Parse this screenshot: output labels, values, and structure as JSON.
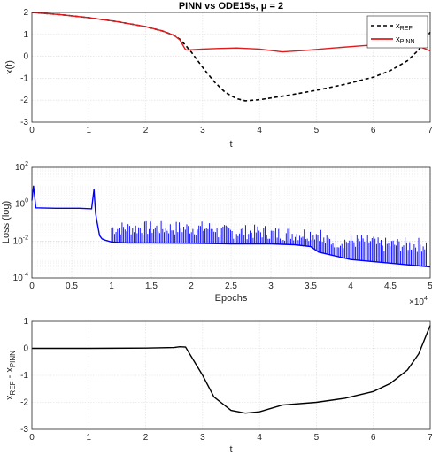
{
  "chart_data": [
    {
      "type": "line",
      "title": "PINN vs ODE15s, μ = 2",
      "xlabel": "t",
      "ylabel": "x(t)",
      "xlim": [
        0,
        7
      ],
      "ylim": [
        -3,
        2
      ],
      "xticks": [
        "0",
        "1",
        "2",
        "3",
        "4",
        "5",
        "6",
        "7"
      ],
      "yticks": [
        "-3",
        "-2",
        "-1",
        "0",
        "1",
        "2"
      ],
      "grid": true,
      "legend_position": "top-right",
      "series": [
        {
          "name": "xREF",
          "color": "#000000",
          "style": "dashed",
          "x": [
            0,
            0.5,
            1,
            1.5,
            2,
            2.3,
            2.5,
            2.6,
            2.7,
            2.8,
            2.9,
            3.0,
            3.2,
            3.4,
            3.6,
            3.75,
            4.0,
            4.5,
            5.0,
            5.5,
            6.0,
            6.3,
            6.6,
            6.8,
            7.0
          ],
          "y": [
            2.0,
            1.9,
            1.76,
            1.58,
            1.35,
            1.15,
            0.95,
            0.78,
            0.5,
            0.2,
            -0.15,
            -0.5,
            -1.15,
            -1.65,
            -1.93,
            -2.03,
            -1.98,
            -1.78,
            -1.55,
            -1.28,
            -0.95,
            -0.65,
            -0.2,
            0.3,
            1.1
          ]
        },
        {
          "name": "xPINN",
          "color": "#e31a1c",
          "style": "solid",
          "x": [
            0,
            0.5,
            1,
            1.5,
            2,
            2.3,
            2.5,
            2.6,
            2.7,
            2.8,
            3.0,
            3.3,
            3.6,
            4.0,
            4.4,
            4.8,
            5.3,
            5.8,
            6.2,
            6.6,
            6.8,
            7.0
          ],
          "y": [
            2.0,
            1.9,
            1.76,
            1.58,
            1.35,
            1.15,
            0.95,
            0.75,
            0.3,
            0.3,
            0.33,
            0.36,
            0.38,
            0.33,
            0.2,
            0.27,
            0.38,
            0.48,
            0.55,
            0.55,
            0.45,
            0.25
          ]
        }
      ]
    },
    {
      "type": "line",
      "title": "",
      "xlabel": "Epochs",
      "ylabel": "Loss (log)",
      "xlim": [
        0,
        5
      ],
      "ylim": [
        -4,
        2
      ],
      "log_scale_y": true,
      "x_multiplier": "×10^4",
      "xticks": [
        "0",
        "0.5",
        "1",
        "1.5",
        "2",
        "2.5",
        "3",
        "3.5",
        "4",
        "4.5",
        "5"
      ],
      "yticks": [
        "10^-4",
        "10^-2",
        "10^0",
        "10^2"
      ],
      "grid": true,
      "series": [
        {
          "name": "",
          "color": "#0000ff",
          "style": "solid",
          "x": [
            0,
            0.02,
            0.05,
            0.3,
            0.6,
            0.75,
            0.78,
            0.8,
            0.82,
            0.85,
            0.88,
            0.92,
            0.96,
            1.0,
            1.2,
            1.5,
            2.0,
            2.5,
            3.0,
            3.3,
            3.5,
            3.6,
            4.0,
            4.5,
            5.0
          ],
          "log10_y": [
            0.2,
            1.0,
            -0.2,
            -0.22,
            -0.22,
            -0.25,
            0.8,
            -0.5,
            -1.0,
            -1.7,
            -1.88,
            -1.95,
            -2.0,
            -2.05,
            -2.1,
            -2.1,
            -2.12,
            -2.15,
            -2.15,
            -2.2,
            -2.3,
            -2.6,
            -3.0,
            -3.2,
            -3.4
          ],
          "spike_range": [
            1.0,
            4.95
          ],
          "spike_peak_log10": [
            -1.3,
            -1.3,
            -1.5,
            -1.6,
            -2.0,
            -2.2
          ]
        }
      ]
    },
    {
      "type": "line",
      "title": "",
      "xlabel": "t",
      "ylabel": "xREF - xPINN",
      "xlim": [
        0,
        7
      ],
      "ylim": [
        -3,
        1
      ],
      "xticks": [
        "0",
        "1",
        "2",
        "3",
        "4",
        "5",
        "6",
        "7"
      ],
      "yticks": [
        "-3",
        "-2",
        "-1",
        "0",
        "1"
      ],
      "grid": true,
      "series": [
        {
          "name": "",
          "color": "#000000",
          "style": "solid",
          "x": [
            0,
            1,
            2,
            2.5,
            2.6,
            2.7,
            2.8,
            3.0,
            3.2,
            3.5,
            3.75,
            4.0,
            4.4,
            5.0,
            5.5,
            6.0,
            6.3,
            6.6,
            6.8,
            7.0
          ],
          "y": [
            0,
            0,
            0.01,
            0.03,
            0.06,
            0.05,
            -0.3,
            -1.0,
            -1.8,
            -2.3,
            -2.4,
            -2.35,
            -2.1,
            -2.0,
            -1.85,
            -1.6,
            -1.3,
            -0.8,
            -0.2,
            0.85
          ]
        }
      ]
    }
  ]
}
